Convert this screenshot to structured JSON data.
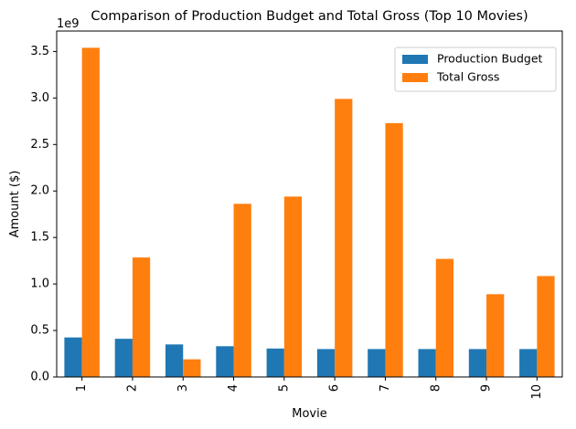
{
  "chart_data": {
    "type": "bar",
    "title": "Comparison of Production Budget and Total Gross (Top 10 Movies)",
    "xlabel": "Movie",
    "ylabel": "Amount ($)",
    "y_offset_label": "1e9",
    "categories": [
      "1",
      "2",
      "3",
      "4",
      "5",
      "6",
      "7",
      "8",
      "9",
      "10"
    ],
    "series": [
      {
        "name": "Production Budget",
        "color": "#1f77b4",
        "values": [
          425000000,
          410600000,
          350000000,
          330600000,
          306000000,
          300000000,
          300000000,
          300000000,
          300000000,
          300000000
        ]
      },
      {
        "name": "Total Gross",
        "color": "#ff7f0e",
        "values": [
          3540000000,
          1285000000,
          190000000,
          1862000000,
          1940000000,
          2990000000,
          2730000000,
          1270000000,
          890000000,
          1085000000
        ]
      }
    ],
    "ylim": [
      0,
      3720000000
    ],
    "yticks": [
      0,
      500000000,
      1000000000,
      1500000000,
      2000000000,
      2500000000,
      3000000000,
      3500000000
    ],
    "ytick_labels": [
      "0.0",
      "0.5",
      "1.0",
      "1.5",
      "2.0",
      "2.5",
      "3.0",
      "3.5"
    ],
    "grid": false,
    "legend_position": "top-right",
    "xtick_rotation": "vertical"
  }
}
